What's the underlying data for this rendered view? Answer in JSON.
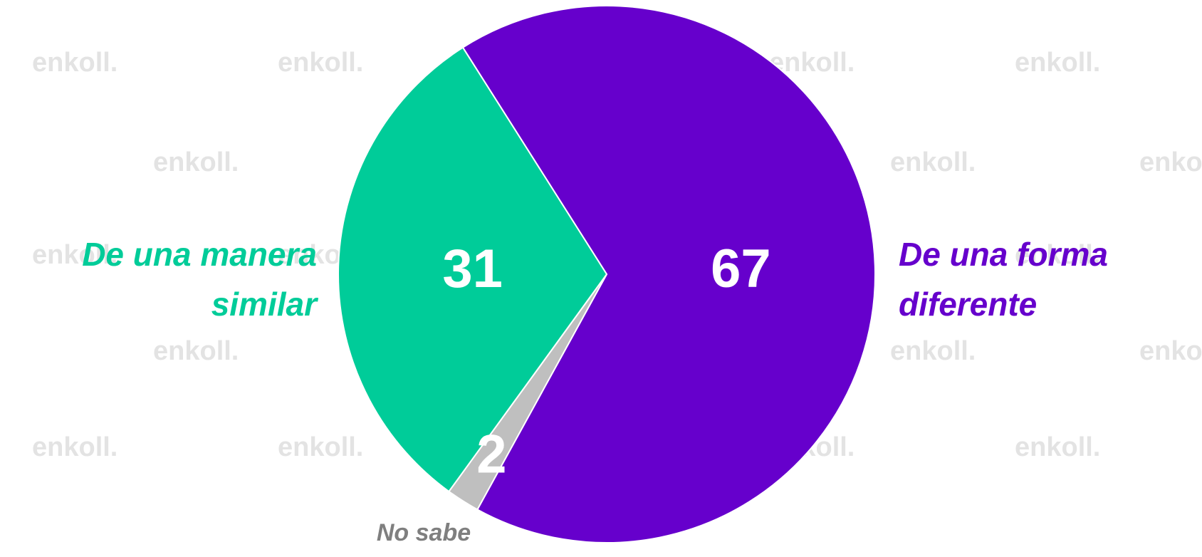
{
  "chart_data": {
    "type": "pie",
    "watermark": "enkoll.",
    "categories": [
      "De una forma diferente",
      "No sabe",
      "De una manera similar"
    ],
    "values": [
      67,
      2,
      31
    ],
    "colors": [
      "#6600cc",
      "#bfbfbf",
      "#00cc99"
    ],
    "label_colors": [
      "#6600cc",
      "#7f7f7f",
      "#00cc99"
    ]
  }
}
